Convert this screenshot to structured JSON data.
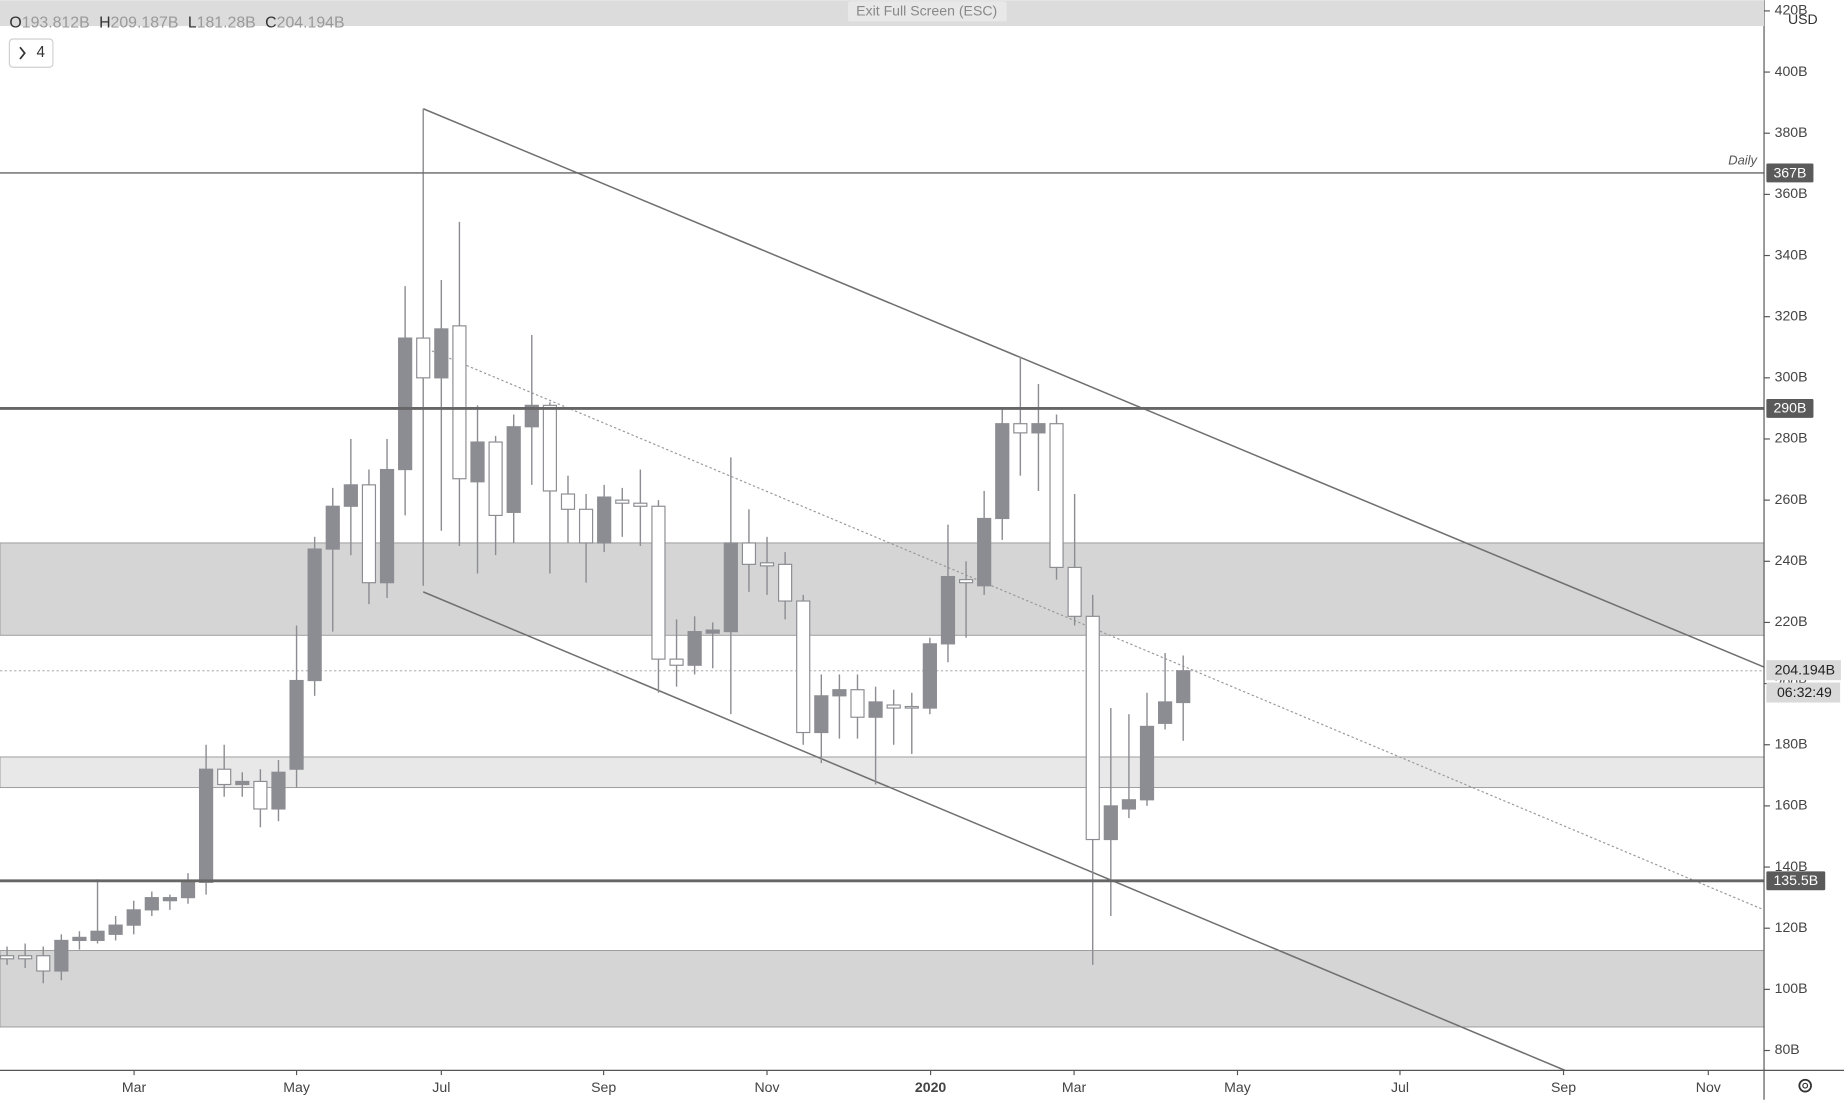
{
  "chart_data": {
    "type": "candlestick",
    "header_button": "Exit Full Screen (ESC)",
    "currency": "USD",
    "interval_button": "4",
    "ohlc_legend": [
      {
        "key": "O",
        "value": "193.812B"
      },
      {
        "key": "H",
        "value": "209.187B"
      },
      {
        "key": "L",
        "value": "181.28B"
      },
      {
        "key": "C",
        "value": "204.194B"
      }
    ],
    "x": [
      0,
      1,
      2,
      3,
      4,
      5,
      6,
      7,
      8,
      9,
      10,
      11,
      12,
      13,
      14,
      15,
      16,
      17,
      18,
      19,
      20,
      21,
      22,
      23,
      24,
      25,
      26,
      27,
      28,
      29,
      30,
      31,
      32,
      33,
      34,
      35,
      36,
      37,
      38,
      39,
      40,
      41,
      42,
      43,
      44,
      45,
      46,
      47,
      48,
      49,
      50,
      51,
      52,
      53,
      54,
      55,
      56,
      57,
      58,
      59,
      60,
      61,
      62,
      63,
      64,
      65
    ],
    "open": [
      111,
      111,
      111,
      106,
      116,
      116,
      118,
      121,
      126,
      129,
      130,
      135,
      172,
      167,
      168,
      159,
      172,
      201,
      244,
      258,
      265,
      233,
      270,
      313,
      300,
      317,
      266,
      279,
      256,
      284,
      291,
      262,
      257,
      246,
      260,
      259,
      258,
      208,
      206,
      216.5,
      217,
      246,
      239.5,
      239,
      227,
      184,
      196,
      198,
      189,
      193,
      192.5,
      192,
      213,
      234,
      232,
      254,
      285,
      282,
      285,
      238,
      222,
      149,
      159,
      162,
      187,
      193.812
    ],
    "high": [
      114,
      115,
      114,
      118,
      119,
      136,
      124,
      129,
      132,
      131,
      138,
      180,
      180,
      171,
      172,
      175,
      219,
      248,
      264,
      280,
      270,
      280,
      330,
      388,
      332,
      351,
      291,
      281,
      288,
      314,
      292,
      268,
      262,
      265,
      264,
      270,
      260,
      221,
      222,
      220,
      274,
      257,
      248,
      243,
      229,
      203,
      203,
      203,
      199,
      198,
      197,
      215,
      252,
      240,
      263,
      290,
      307,
      298,
      288,
      262,
      229,
      192,
      190,
      197,
      210,
      209.187
    ],
    "low": [
      108,
      107,
      102,
      103,
      113,
      115,
      116,
      118,
      124,
      126,
      128,
      131,
      163,
      163,
      153,
      155,
      166,
      196,
      217,
      242,
      226,
      228,
      255,
      232,
      250,
      245,
      236,
      242,
      246,
      265,
      236,
      246,
      233,
      243,
      248,
      245,
      197,
      199,
      203,
      205,
      190,
      230,
      229,
      221,
      180,
      174,
      182,
      182,
      167,
      180,
      177,
      190,
      207,
      215,
      229,
      247,
      268,
      263,
      234,
      219,
      108,
      124,
      156,
      160,
      185,
      181.28
    ],
    "close": [
      110,
      110,
      106,
      116,
      117,
      119,
      121,
      126,
      130,
      130,
      135,
      172,
      167,
      168,
      159,
      171,
      201,
      244,
      258,
      265,
      233,
      270,
      313,
      300,
      316,
      267,
      279,
      255,
      284,
      291,
      263,
      257,
      246,
      261,
      259,
      258,
      208,
      206,
      217,
      217.5,
      246,
      239,
      238.5,
      227,
      184,
      196,
      198,
      189,
      194,
      192,
      192,
      213,
      235,
      233,
      254,
      285,
      282,
      285,
      238,
      222,
      149,
      160,
      162,
      186,
      194,
      204.194
    ],
    "up_color": "#8c8d92",
    "down_color": "#ffffff",
    "wick_color": "#8c8d92",
    "xlim": [
      -0.39,
      97.1
    ],
    "xticks": [
      {
        "value": 7.02,
        "label": "Mar"
      },
      {
        "value": 16.0,
        "label": "May"
      },
      {
        "value": 24.0,
        "label": "Jul"
      },
      {
        "value": 32.97,
        "label": "Sep"
      },
      {
        "value": 42.0,
        "label": "Nov"
      },
      {
        "value": 51.04,
        "label": "2020"
      },
      {
        "value": 58.97,
        "label": "Mar"
      },
      {
        "value": 68.0,
        "label": "May"
      },
      {
        "value": 76.98,
        "label": "Jul"
      },
      {
        "value": 86.02,
        "label": "Sep"
      },
      {
        "value": 94.02,
        "label": "Nov"
      }
    ],
    "ylim": [
      73.5,
      423.5
    ],
    "yticks": [
      {
        "value": 80,
        "label": "80B"
      },
      {
        "value": 100,
        "label": "100B"
      },
      {
        "value": 120,
        "label": "120B"
      },
      {
        "value": 140,
        "label": "140B"
      },
      {
        "value": 160,
        "label": "160B"
      },
      {
        "value": 180,
        "label": "180B"
      },
      {
        "value": 200,
        "label": "200B"
      },
      {
        "value": 220,
        "label": "220B"
      },
      {
        "value": 240,
        "label": "240B"
      },
      {
        "value": 260,
        "label": "260B"
      },
      {
        "value": 280,
        "label": "280B"
      },
      {
        "value": 300,
        "label": "300B"
      },
      {
        "value": 320,
        "label": "320B"
      },
      {
        "value": 340,
        "label": "340B"
      },
      {
        "value": 360,
        "label": "360B"
      },
      {
        "value": 380,
        "label": "380B"
      },
      {
        "value": 400,
        "label": "400B"
      },
      {
        "value": 420,
        "label": "420B"
      }
    ],
    "zones": [
      {
        "from": 215.8,
        "to": 246,
        "color": "#d5d5d5"
      },
      {
        "from": 166,
        "to": 176,
        "color": "#e8e8e8"
      },
      {
        "from": 87.7,
        "to": 112.7,
        "color": "#d5d5d5"
      }
    ],
    "levels": [
      {
        "value": 367,
        "label": "367B",
        "text": "Daily",
        "line_width": 1.2
      },
      {
        "value": 290,
        "label": "290B",
        "line_width": 2.4
      },
      {
        "value": 135.5,
        "label": "135.5B",
        "line_width": 2.4
      }
    ],
    "trendlines": [
      {
        "x": [
          23,
          97.1
        ],
        "y": [
          388,
          205.4
        ],
        "style": "solid"
      },
      {
        "x": [
          23,
          86.1
        ],
        "y": [
          230,
          73.5
        ],
        "style": "solid"
      },
      {
        "x": [
          23,
          97.1
        ],
        "y": [
          310,
          126
        ],
        "style": "dotted"
      }
    ],
    "last_price": {
      "value": 204.194,
      "label": "204.194B"
    },
    "countdown": "06:32:49"
  }
}
